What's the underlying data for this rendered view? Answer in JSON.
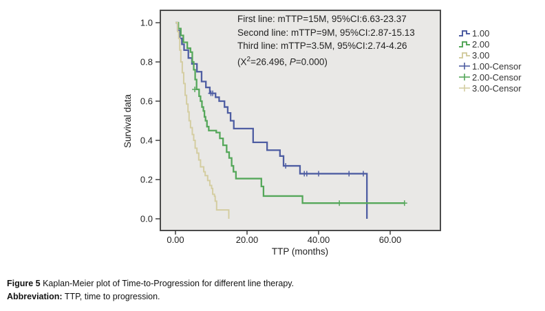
{
  "figure": {
    "caption_label": "Figure 5",
    "caption_text": " Kaplan-Meier plot of Time-to-Progression for different line therapy.",
    "abbrev_label": "Abbreviation:",
    "abbrev_text": " TTP, time to progression."
  },
  "chart_data": {
    "type": "line",
    "subtype": "kaplan-meier-step",
    "title": "",
    "xlabel": "TTP (months)",
    "ylabel": "Survival data",
    "xlim": [
      0,
      72
    ],
    "ylim": [
      0,
      1.0
    ],
    "x_ticks": [
      0,
      20,
      40,
      60
    ],
    "x_tick_labels": [
      "0.00",
      "20.00",
      "40.00",
      "60.00"
    ],
    "y_ticks": [
      0.0,
      0.2,
      0.4,
      0.6,
      0.8,
      1.0
    ],
    "y_tick_labels": [
      "0.0",
      "0.2",
      "0.4",
      "0.6",
      "0.8",
      "1.0"
    ],
    "grid": false,
    "plot_background": "#e9e8e6",
    "plot_border_color": "#4a4a4a",
    "annotation": {
      "lines": [
        "First line: mTTP=15M, 95%CI:6.63-23.37",
        "Second line: mTTP=9M, 95%CI:2.87-15.13",
        "Third line: mTTP=3.5M, 95%CI:2.74-4.26"
      ],
      "chi_line": {
        "prefix": "(X",
        "sup": "2",
        "mid": "=26.496, ",
        "p": "P",
        "suffix": "=0.000)"
      }
    },
    "legend": {
      "position": "right",
      "entries": [
        {
          "label": "1.00",
          "marker": "step",
          "color": "#4e5da2"
        },
        {
          "label": "2.00",
          "marker": "step",
          "color": "#55a75a"
        },
        {
          "label": "3.00",
          "marker": "step",
          "color": "#d4cda1"
        },
        {
          "label": "1.00-Censor",
          "marker": "plus",
          "color": "#4e5da2"
        },
        {
          "label": "2.00-Censor",
          "marker": "plus",
          "color": "#55a75a"
        },
        {
          "label": "3.00-Censor",
          "marker": "plus",
          "color": "#d4cda1"
        }
      ]
    },
    "series": [
      {
        "name": "1.00",
        "therapy": "First line",
        "median_months": 15,
        "ci95": "6.63-23.37",
        "color": "#4e5da2",
        "stroke_width": 2.3,
        "steps": [
          [
            0,
            1.0
          ],
          [
            0.6,
            0.96
          ],
          [
            1.2,
            0.92
          ],
          [
            1.8,
            0.89
          ],
          [
            2.4,
            0.86
          ],
          [
            3.6,
            0.82
          ],
          [
            4.6,
            0.79
          ],
          [
            6.0,
            0.75
          ],
          [
            7.3,
            0.7
          ],
          [
            8.5,
            0.67
          ],
          [
            9.6,
            0.64
          ],
          [
            11.2,
            0.62
          ],
          [
            12.2,
            0.6
          ],
          [
            13.7,
            0.57
          ],
          [
            14.6,
            0.54
          ],
          [
            15.4,
            0.5
          ],
          [
            16.3,
            0.46
          ],
          [
            21.7,
            0.39
          ],
          [
            25.6,
            0.35
          ],
          [
            29.2,
            0.32
          ],
          [
            30.2,
            0.27
          ],
          [
            34.8,
            0.23
          ],
          [
            53.5,
            0.0
          ]
        ],
        "censors": [
          [
            9.9,
            0.64
          ],
          [
            10.4,
            0.64
          ],
          [
            30.8,
            0.27
          ],
          [
            36.0,
            0.23
          ],
          [
            36.7,
            0.23
          ],
          [
            40.0,
            0.23
          ],
          [
            48.5,
            0.23
          ],
          [
            52.5,
            0.23
          ]
        ]
      },
      {
        "name": "2.00",
        "therapy": "Second line",
        "median_months": 9,
        "ci95": "2.87-15.13",
        "color": "#55a75a",
        "stroke_width": 2.3,
        "steps": [
          [
            0,
            1.0
          ],
          [
            0.8,
            0.97
          ],
          [
            1.5,
            0.935
          ],
          [
            2.2,
            0.9
          ],
          [
            3.3,
            0.87
          ],
          [
            4.2,
            0.85
          ],
          [
            4.7,
            0.8
          ],
          [
            5.1,
            0.76
          ],
          [
            5.5,
            0.71
          ],
          [
            5.9,
            0.66
          ],
          [
            6.6,
            0.625
          ],
          [
            7.0,
            0.6
          ],
          [
            7.4,
            0.57
          ],
          [
            7.8,
            0.55
          ],
          [
            8.1,
            0.52
          ],
          [
            8.4,
            0.5
          ],
          [
            8.8,
            0.47
          ],
          [
            9.3,
            0.45
          ],
          [
            11.4,
            0.44
          ],
          [
            12.4,
            0.41
          ],
          [
            13.3,
            0.375
          ],
          [
            14.3,
            0.34
          ],
          [
            15.0,
            0.31
          ],
          [
            15.7,
            0.27
          ],
          [
            16.2,
            0.24
          ],
          [
            16.9,
            0.205
          ],
          [
            24.0,
            0.165
          ],
          [
            24.6,
            0.116
          ],
          [
            35.5,
            0.08
          ],
          [
            64.0,
            0.08
          ]
        ],
        "censors": [
          [
            5.4,
            0.66
          ],
          [
            45.8,
            0.08
          ],
          [
            64.0,
            0.08
          ]
        ]
      },
      {
        "name": "3.00",
        "therapy": "Third line",
        "median_months": 3.5,
        "ci95": "2.74-4.26",
        "color": "#d4cda1",
        "stroke_width": 2.0,
        "steps": [
          [
            0,
            1.0
          ],
          [
            0.6,
            0.955
          ],
          [
            0.9,
            0.92
          ],
          [
            1.2,
            0.86
          ],
          [
            1.5,
            0.8
          ],
          [
            1.9,
            0.745
          ],
          [
            2.3,
            0.69
          ],
          [
            2.7,
            0.63
          ],
          [
            3.1,
            0.585
          ],
          [
            3.5,
            0.545
          ],
          [
            3.8,
            0.5
          ],
          [
            4.2,
            0.465
          ],
          [
            4.7,
            0.43
          ],
          [
            5.1,
            0.4
          ],
          [
            5.5,
            0.36
          ],
          [
            6.0,
            0.335
          ],
          [
            6.5,
            0.3
          ],
          [
            7.0,
            0.265
          ],
          [
            7.9,
            0.24
          ],
          [
            8.3,
            0.22
          ],
          [
            9.0,
            0.195
          ],
          [
            9.6,
            0.17
          ],
          [
            10.1,
            0.155
          ],
          [
            10.4,
            0.125
          ],
          [
            10.9,
            0.115
          ],
          [
            11.1,
            0.09
          ],
          [
            11.5,
            0.045
          ],
          [
            14.9,
            0.0
          ]
        ],
        "censors": []
      }
    ],
    "stats": {
      "chi_square": 26.496,
      "p_value": "0.000"
    }
  }
}
